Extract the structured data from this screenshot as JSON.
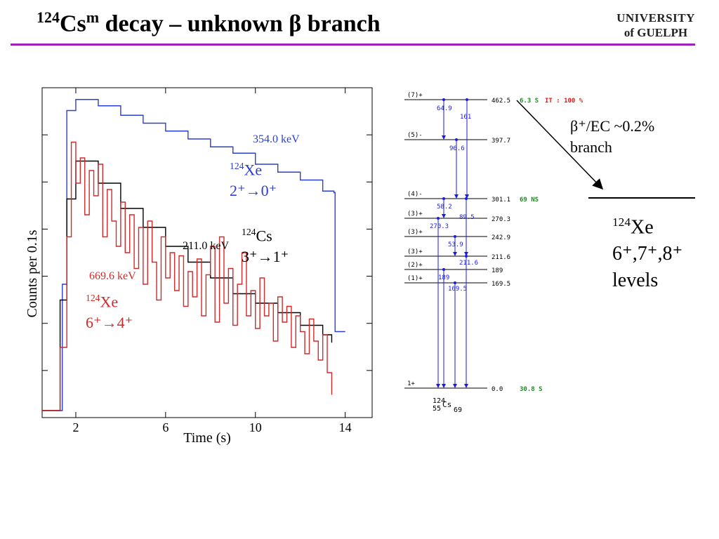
{
  "slide": {
    "title_mass": "124",
    "title_elem": "Cs",
    "title_meta": "m",
    "title_rest": " decay – unknown β branch",
    "logo_line1": "UNIVERSITY",
    "logo_line2": "of GUELPH",
    "rule_color": "#a020c0"
  },
  "chart_data": {
    "type": "line",
    "xlabel": "Time (s)",
    "ylabel": "Counts per 0.1s",
    "xlim": [
      0.5,
      15.2
    ],
    "xticks": [
      2,
      6,
      10,
      14
    ],
    "colors": {
      "blue": "#2a3fd1",
      "red": "#d22a2a",
      "black": "#000000"
    },
    "series": [
      {
        "name": "354.0 keV",
        "color": "#2a3fd1",
        "x": [
          0.5,
          1.0,
          1.4,
          1.6,
          2.0,
          3.0,
          4.0,
          5.0,
          6.0,
          7.0,
          8.0,
          9.0,
          10.0,
          11.0,
          12.0,
          13.0,
          13.5,
          13.55,
          14.0
        ],
        "y": [
          0.0,
          0.0,
          0.4,
          0.95,
          0.985,
          0.965,
          0.935,
          0.91,
          0.885,
          0.86,
          0.835,
          0.815,
          0.78,
          0.755,
          0.73,
          0.695,
          0.69,
          0.25,
          0.25
        ]
      },
      {
        "name": "211.0 keV",
        "color": "#000000",
        "x": [
          0.5,
          1.0,
          1.3,
          1.6,
          2.0,
          3.0,
          4.0,
          5.0,
          6.0,
          7.0,
          8.0,
          9.0,
          10.0,
          11.0,
          12.0,
          13.0,
          13.4
        ],
        "y": [
          0.0,
          0.0,
          0.35,
          0.67,
          0.79,
          0.72,
          0.64,
          0.58,
          0.52,
          0.47,
          0.42,
          0.37,
          0.34,
          0.31,
          0.27,
          0.24,
          0.215
        ]
      },
      {
        "name": "669.6 keV",
        "color": "#d22a2a",
        "x": [
          0.5,
          1.0,
          1.3,
          1.6,
          1.8,
          2.0,
          2.2,
          2.4,
          2.6,
          2.8,
          3.0,
          3.2,
          3.4,
          3.6,
          3.8,
          4.0,
          4.2,
          4.4,
          4.6,
          4.8,
          5.0,
          5.2,
          5.4,
          5.6,
          5.8,
          6.0,
          6.2,
          6.4,
          6.6,
          6.8,
          7.0,
          7.2,
          7.4,
          7.6,
          7.8,
          8.0,
          8.2,
          8.4,
          8.6,
          8.8,
          9.0,
          9.2,
          9.4,
          9.6,
          9.8,
          10.0,
          10.2,
          10.4,
          10.6,
          10.8,
          11.0,
          11.2,
          11.4,
          11.6,
          11.8,
          12.0,
          12.2,
          12.4,
          12.6,
          12.8,
          13.0,
          13.2,
          13.4
        ],
        "y": [
          0.0,
          0.0,
          0.2,
          0.55,
          0.85,
          0.72,
          0.8,
          0.62,
          0.76,
          0.68,
          0.78,
          0.55,
          0.7,
          0.6,
          0.52,
          0.66,
          0.5,
          0.62,
          0.45,
          0.58,
          0.4,
          0.6,
          0.47,
          0.35,
          0.55,
          0.42,
          0.5,
          0.38,
          0.49,
          0.33,
          0.44,
          0.36,
          0.48,
          0.3,
          0.43,
          0.52,
          0.28,
          0.55,
          0.34,
          0.45,
          0.27,
          0.4,
          0.5,
          0.3,
          0.38,
          0.26,
          0.42,
          0.3,
          0.34,
          0.22,
          0.36,
          0.28,
          0.33,
          0.2,
          0.3,
          0.25,
          0.18,
          0.29,
          0.22,
          0.16,
          0.24,
          0.12,
          0.05
        ]
      }
    ],
    "annotations": {
      "blue_energy": "354.0 keV",
      "blue_nucleus_mass": "124",
      "blue_nucleus": "Xe",
      "blue_transition": "2⁺→0⁺",
      "black_energy": "211.0 keV",
      "black_nucleus_mass": "124",
      "black_nucleus": "Cs",
      "black_transition": "3⁺→1⁺",
      "red_energy": "669.6 keV",
      "red_nucleus_mass": "124",
      "red_nucleus": "Xe",
      "red_transition": "6⁺→4⁺"
    }
  },
  "level_scheme": {
    "levels": [
      {
        "spin": "(7)+",
        "energy": "462.5",
        "halflife": "6.3 S",
        "extra": "IT : 100 %"
      },
      {
        "spin": "(5)-",
        "energy": "397.7",
        "halflife": "",
        "extra": ""
      },
      {
        "spin": "(4)-",
        "energy": "301.1",
        "halflife": "69 NS",
        "extra": ""
      },
      {
        "spin": "(3)+",
        "energy": "270.3",
        "halflife": "",
        "extra": ""
      },
      {
        "spin": "(3)+",
        "energy": "242.9",
        "halflife": "",
        "extra": ""
      },
      {
        "spin": "(3)+",
        "energy": "211.6",
        "halflife": "",
        "extra": ""
      },
      {
        "spin": "(2)+",
        "energy": "189",
        "halflife": "",
        "extra": ""
      },
      {
        "spin": "(1)+",
        "energy": "169.5",
        "halflife": "",
        "extra": ""
      },
      {
        "spin": "1+",
        "energy": "0.0",
        "halflife": "30.8 S",
        "extra": ""
      }
    ],
    "transitions": [
      "64.9",
      "161",
      "96.6",
      "58.2",
      "89.5",
      "270.3",
      "53.9",
      "211.6",
      "189",
      "169.5"
    ],
    "nucleus": {
      "mass": "124",
      "z": "55",
      "symbol": "Cs",
      "n": "69"
    },
    "colors": {
      "transition": "#1a1ae6",
      "halflife": "#1a8c1a",
      "extra": "#e01a1a"
    }
  },
  "side_note": {
    "branch_text": "β⁺/EC ~0.2%",
    "branch_word": "branch",
    "levels_mass": "124",
    "levels_nucleus": "Xe",
    "levels_spins": "6⁺,7⁺,8⁺",
    "levels_word": "levels"
  }
}
